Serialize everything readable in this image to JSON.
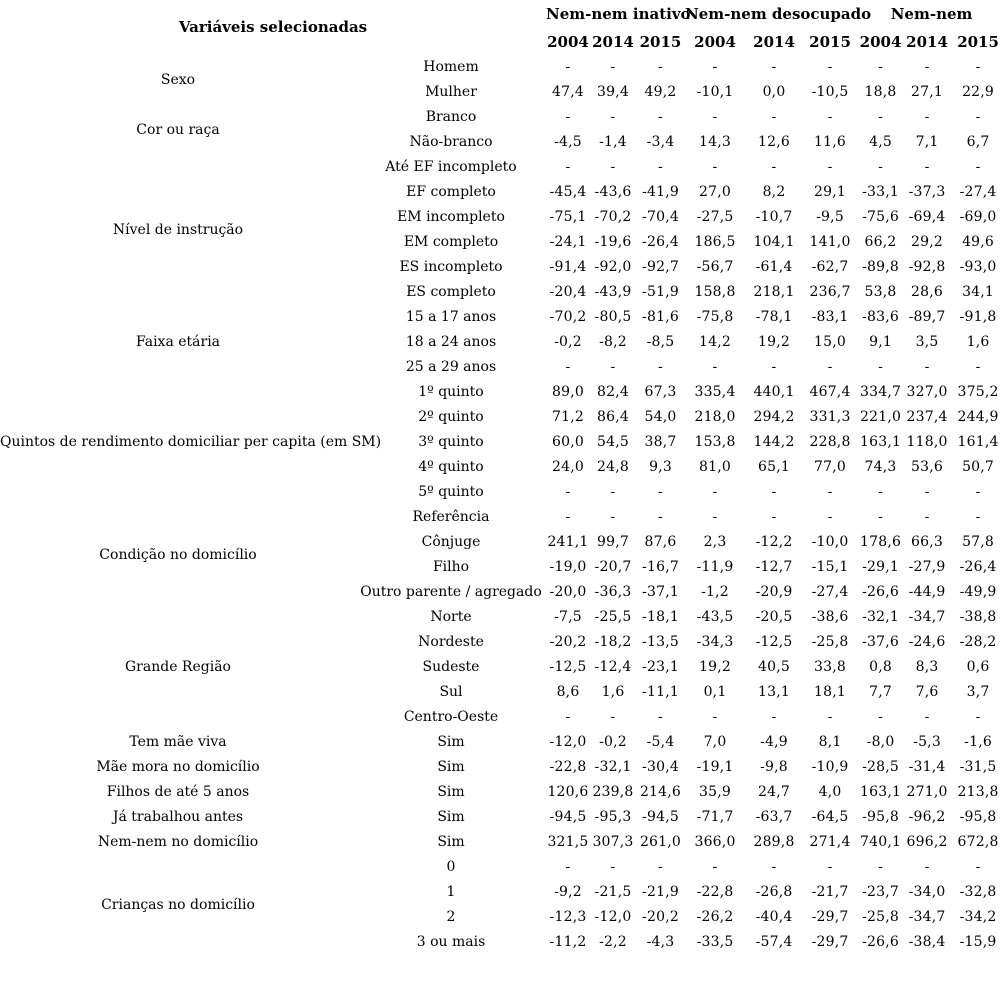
{
  "table": {
    "header": {
      "variables_label": "Variáveis selecionadas",
      "groups": [
        {
          "label": "Nem-nem inativo"
        },
        {
          "label": "Nem-nem desocupado"
        },
        {
          "label": "Nem-nem"
        }
      ],
      "years": [
        "2004",
        "2014",
        "2015",
        "2004",
        "2014",
        "2015",
        "2004",
        "2014",
        "2015"
      ]
    },
    "empty_value": "-",
    "categories": [
      {
        "category": "Sexo",
        "rows": [
          {
            "label": "Homem",
            "values": [
              "-",
              "-",
              "-",
              "-",
              "-",
              "-",
              "-",
              "-",
              "-"
            ]
          },
          {
            "label": "Mulher",
            "values": [
              "47,4",
              "39,4",
              "49,2",
              "-10,1",
              "0,0",
              "-10,5",
              "18,8",
              "27,1",
              "22,9"
            ]
          }
        ]
      },
      {
        "category": "Cor ou raça",
        "rows": [
          {
            "label": "Branco",
            "values": [
              "-",
              "-",
              "-",
              "-",
              "-",
              "-",
              "-",
              "-",
              "-"
            ]
          },
          {
            "label": "Não-branco",
            "values": [
              "-4,5",
              "-1,4",
              "-3,4",
              "14,3",
              "12,6",
              "11,6",
              "4,5",
              "7,1",
              "6,7"
            ]
          }
        ]
      },
      {
        "category": "Nível de instrução",
        "rows": [
          {
            "label": "Até EF incompleto",
            "values": [
              "-",
              "-",
              "-",
              "-",
              "-",
              "-",
              "-",
              "-",
              "-"
            ]
          },
          {
            "label": "EF completo",
            "values": [
              "-45,4",
              "-43,6",
              "-41,9",
              "27,0",
              "8,2",
              "29,1",
              "-33,1",
              "-37,3",
              "-27,4"
            ]
          },
          {
            "label": "EM incompleto",
            "values": [
              "-75,1",
              "-70,2",
              "-70,4",
              "-27,5",
              "-10,7",
              "-9,5",
              "-75,6",
              "-69,4",
              "-69,0"
            ]
          },
          {
            "label": "EM completo",
            "values": [
              "-24,1",
              "-19,6",
              "-26,4",
              "186,5",
              "104,1",
              "141,0",
              "66,2",
              "29,2",
              "49,6"
            ]
          },
          {
            "label": "ES incompleto",
            "values": [
              "-91,4",
              "-92,0",
              "-92,7",
              "-56,7",
              "-61,4",
              "-62,7",
              "-89,8",
              "-92,8",
              "-93,0"
            ]
          },
          {
            "label": "ES completo",
            "values": [
              "-20,4",
              "-43,9",
              "-51,9",
              "158,8",
              "218,1",
              "236,7",
              "53,8",
              "28,6",
              "34,1"
            ]
          }
        ]
      },
      {
        "category": "Faixa etária",
        "rows": [
          {
            "label": "15 a 17 anos",
            "values": [
              "-70,2",
              "-80,5",
              "-81,6",
              "-75,8",
              "-78,1",
              "-83,1",
              "-83,6",
              "-89,7",
              "-91,8"
            ]
          },
          {
            "label": "18 a 24 anos",
            "values": [
              "-0,2",
              "-8,2",
              "-8,5",
              "14,2",
              "19,2",
              "15,0",
              "9,1",
              "3,5",
              "1,6"
            ]
          },
          {
            "label": "25 a 29 anos",
            "values": [
              "-",
              "-",
              "-",
              "-",
              "-",
              "-",
              "-",
              "-",
              "-"
            ]
          }
        ]
      },
      {
        "category": "Quintos de rendimento domiciliar per capita (em SM)",
        "rows": [
          {
            "label": "1º quinto",
            "values": [
              "89,0",
              "82,4",
              "67,3",
              "335,4",
              "440,1",
              "467,4",
              "334,7",
              "327,0",
              "375,2"
            ]
          },
          {
            "label": "2º quinto",
            "values": [
              "71,2",
              "86,4",
              "54,0",
              "218,0",
              "294,2",
              "331,3",
              "221,0",
              "237,4",
              "244,9"
            ]
          },
          {
            "label": "3º quinto",
            "values": [
              "60,0",
              "54,5",
              "38,7",
              "153,8",
              "144,2",
              "228,8",
              "163,1",
              "118,0",
              "161,4"
            ]
          },
          {
            "label": "4º quinto",
            "values": [
              "24,0",
              "24,8",
              "9,3",
              "81,0",
              "65,1",
              "77,0",
              "74,3",
              "53,6",
              "50,7"
            ]
          },
          {
            "label": "5º quinto",
            "values": [
              "-",
              "-",
              "-",
              "-",
              "-",
              "-",
              "-",
              "-",
              "-"
            ]
          }
        ]
      },
      {
        "category": "Condição no domicílio",
        "rows": [
          {
            "label": "Referência",
            "values": [
              "-",
              "-",
              "-",
              "-",
              "-",
              "-",
              "-",
              "-",
              "-"
            ]
          },
          {
            "label": "Cônjuge",
            "values": [
              "241,1",
              "99,7",
              "87,6",
              "2,3",
              "-12,2",
              "-10,0",
              "178,6",
              "66,3",
              "57,8"
            ]
          },
          {
            "label": "Filho",
            "values": [
              "-19,0",
              "-20,7",
              "-16,7",
              "-11,9",
              "-12,7",
              "-15,1",
              "-29,1",
              "-27,9",
              "-26,4"
            ]
          },
          {
            "label": "Outro parente / agregado",
            "values": [
              "-20,0",
              "-36,3",
              "-37,1",
              "-1,2",
              "-20,9",
              "-27,4",
              "-26,6",
              "-44,9",
              "-49,9"
            ]
          }
        ]
      },
      {
        "category": "Grande Região",
        "rows": [
          {
            "label": "Norte",
            "values": [
              "-7,5",
              "-25,5",
              "-18,1",
              "-43,5",
              "-20,5",
              "-38,6",
              "-32,1",
              "-34,7",
              "-38,8"
            ]
          },
          {
            "label": "Nordeste",
            "values": [
              "-20,2",
              "-18,2",
              "-13,5",
              "-34,3",
              "-12,5",
              "-25,8",
              "-37,6",
              "-24,6",
              "-28,2"
            ]
          },
          {
            "label": "Sudeste",
            "values": [
              "-12,5",
              "-12,4",
              "-23,1",
              "19,2",
              "40,5",
              "33,8",
              "0,8",
              "8,3",
              "0,6"
            ]
          },
          {
            "label": "Sul",
            "values": [
              "8,6",
              "1,6",
              "-11,1",
              "0,1",
              "13,1",
              "18,1",
              "7,7",
              "7,6",
              "3,7"
            ]
          },
          {
            "label": "Centro-Oeste",
            "values": [
              "-",
              "-",
              "-",
              "-",
              "-",
              "-",
              "-",
              "-",
              "-"
            ]
          }
        ]
      },
      {
        "category": "Tem mãe viva",
        "rows": [
          {
            "label": "Sim",
            "values": [
              "-12,0",
              "-0,2",
              "-5,4",
              "7,0",
              "-4,9",
              "8,1",
              "-8,0",
              "-5,3",
              "-1,6"
            ]
          }
        ]
      },
      {
        "category": "Mãe mora no domicílio",
        "rows": [
          {
            "label": "Sim",
            "values": [
              "-22,8",
              "-32,1",
              "-30,4",
              "-19,1",
              "-9,8",
              "-10,9",
              "-28,5",
              "-31,4",
              "-31,5"
            ]
          }
        ]
      },
      {
        "category": "Filhos de até 5 anos",
        "rows": [
          {
            "label": "Sim",
            "values": [
              "120,6",
              "239,8",
              "214,6",
              "35,9",
              "24,7",
              "4,0",
              "163,1",
              "271,0",
              "213,8"
            ]
          }
        ]
      },
      {
        "category": "Já trabalhou antes",
        "rows": [
          {
            "label": "Sim",
            "values": [
              "-94,5",
              "-95,3",
              "-94,5",
              "-71,7",
              "-63,7",
              "-64,5",
              "-95,8",
              "-96,2",
              "-95,8"
            ]
          }
        ]
      },
      {
        "category": "Nem-nem no domicílio",
        "rows": [
          {
            "label": "Sim",
            "values": [
              "321,5",
              "307,3",
              "261,0",
              "366,0",
              "289,8",
              "271,4",
              "740,1",
              "696,2",
              "672,8"
            ]
          }
        ]
      },
      {
        "category": "Crianças no domicílio",
        "rows": [
          {
            "label": "0",
            "values": [
              "-",
              "-",
              "-",
              "-",
              "-",
              "-",
              "-",
              "-",
              "-"
            ]
          },
          {
            "label": "1",
            "values": [
              "-9,2",
              "-21,5",
              "-21,9",
              "-22,8",
              "-26,8",
              "-21,7",
              "-23,7",
              "-34,0",
              "-32,8"
            ]
          },
          {
            "label": "2",
            "values": [
              "-12,3",
              "-12,0",
              "-20,2",
              "-26,2",
              "-40,4",
              "-29,7",
              "-25,8",
              "-34,7",
              "-34,2"
            ]
          },
          {
            "label": "3 ou mais",
            "values": [
              "-11,2",
              "-2,2",
              "-4,3",
              "-33,5",
              "-57,4",
              "-29,7",
              "-26,6",
              "-38,4",
              "-15,9"
            ]
          }
        ]
      }
    ]
  }
}
